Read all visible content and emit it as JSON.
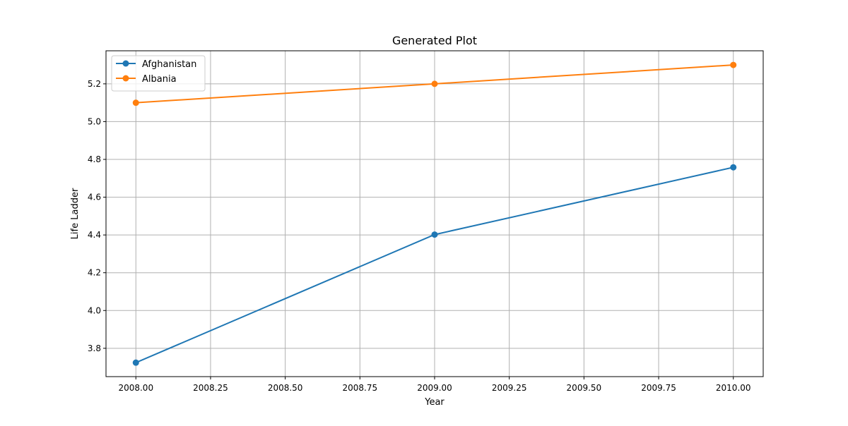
{
  "chart_data": {
    "type": "line",
    "title": "Generated Plot",
    "xlabel": "Year",
    "ylabel": "Life Ladder",
    "xlim": [
      2007.9,
      2010.1
    ],
    "ylim": [
      3.65,
      5.375
    ],
    "x_ticks": [
      2008.0,
      2008.25,
      2008.5,
      2008.75,
      2009.0,
      2009.25,
      2009.5,
      2009.75,
      2010.0
    ],
    "x_tick_labels": [
      "2008.00",
      "2008.25",
      "2008.50",
      "2008.75",
      "2009.00",
      "2009.25",
      "2009.50",
      "2009.75",
      "2010.00"
    ],
    "y_ticks": [
      3.8,
      4.0,
      4.2,
      4.4,
      4.6,
      4.8,
      5.0,
      5.2
    ],
    "y_tick_labels": [
      "3.8",
      "4.0",
      "4.2",
      "4.4",
      "4.6",
      "4.8",
      "5.0",
      "5.2"
    ],
    "grid": true,
    "legend_position": "upper-left",
    "x": [
      2008,
      2009,
      2010
    ],
    "series": [
      {
        "name": "Afghanistan",
        "color": "#1f77b4",
        "values": [
          3.724,
          4.402,
          4.758
        ]
      },
      {
        "name": "Albania",
        "color": "#ff7f0e",
        "values": [
          5.1,
          5.2,
          5.3
        ]
      }
    ]
  }
}
